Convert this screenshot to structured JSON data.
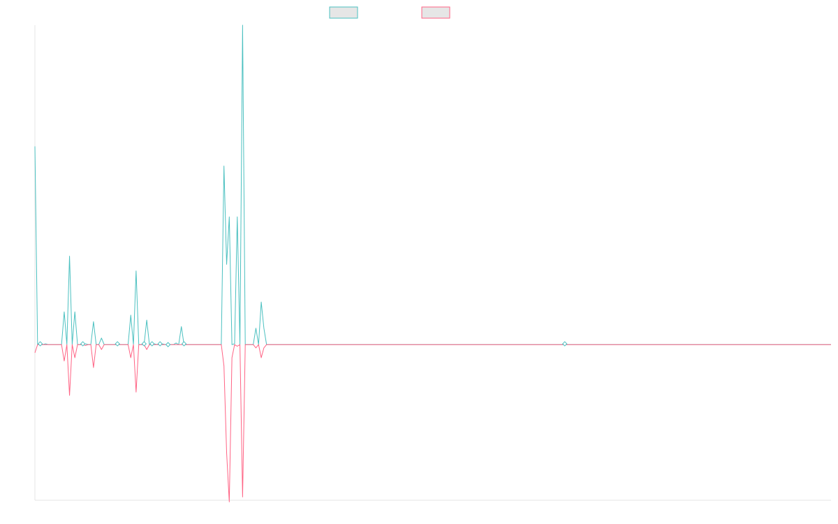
{
  "chart_data": {
    "type": "line",
    "title": "",
    "xlabel": "",
    "ylabel": "",
    "grid": false,
    "axis_labels_shown": false,
    "legend_placement": "top-center",
    "x_count": 300,
    "ylim": [
      -9.5,
      19.5
    ],
    "baseline": 0,
    "series": [
      {
        "color": "#4bc0c0",
        "fill": "#e6e6e6",
        "values": [
          12.1,
          0,
          0,
          0,
          0.05,
          0,
          0,
          0,
          0,
          0,
          0,
          2,
          0,
          5.4,
          0,
          2,
          0,
          0,
          0,
          0.05,
          0,
          0,
          1.4,
          0,
          0,
          0.4,
          0,
          0,
          0,
          0,
          0,
          0,
          0,
          0,
          0,
          0,
          1.8,
          0,
          4.5,
          0,
          0,
          0,
          1.5,
          0,
          0,
          0.04,
          0,
          0,
          0.04,
          0,
          0,
          0,
          0,
          0.1,
          0,
          1.1,
          0,
          0,
          0,
          0,
          0,
          0,
          0,
          0,
          0,
          0,
          0,
          0,
          0,
          0,
          0,
          10.9,
          4.9,
          7.8,
          0,
          0.05,
          7.8,
          0,
          19.5,
          0,
          0,
          0,
          0,
          1,
          0,
          2.6,
          1,
          0,
          0
        ]
      },
      {
        "color": "#ff6384",
        "fill": "#e6e6e6",
        "values": [
          -0.5,
          0,
          0,
          0,
          0,
          0,
          0,
          0,
          0,
          0,
          0,
          -1,
          0,
          -3.1,
          0,
          -0.8,
          0,
          0,
          0,
          -0.05,
          0,
          0,
          -1.4,
          0,
          0,
          -0.3,
          0,
          0,
          0,
          0,
          0,
          0,
          0,
          0,
          0,
          0,
          -0.8,
          0,
          -2.9,
          0,
          0,
          0,
          -0.3,
          0,
          0,
          0,
          0,
          0,
          0,
          0,
          0,
          0,
          0,
          0,
          0,
          0,
          0,
          0,
          0,
          0,
          0,
          0,
          0,
          0,
          0,
          0,
          0,
          0,
          0,
          0,
          0,
          -1.3,
          -6.6,
          -9.6,
          -0.8,
          0,
          -0.1,
          0,
          -9.3,
          0,
          0,
          0,
          0,
          -0.2,
          0,
          -0.8,
          -0.2,
          0,
          0
        ]
      }
    ],
    "markers": [
      {
        "x": 2,
        "y": 0.05
      },
      {
        "x": 18,
        "y": 0.05
      },
      {
        "x": 31,
        "y": 0.05
      },
      {
        "x": 41,
        "y": 0.05
      },
      {
        "x": 44,
        "y": 0.05
      },
      {
        "x": 47,
        "y": 0.05
      },
      {
        "x": 50,
        "y": 0
      },
      {
        "x": 56,
        "y": 0.05
      },
      {
        "x": 199,
        "y": 0.05
      }
    ]
  }
}
